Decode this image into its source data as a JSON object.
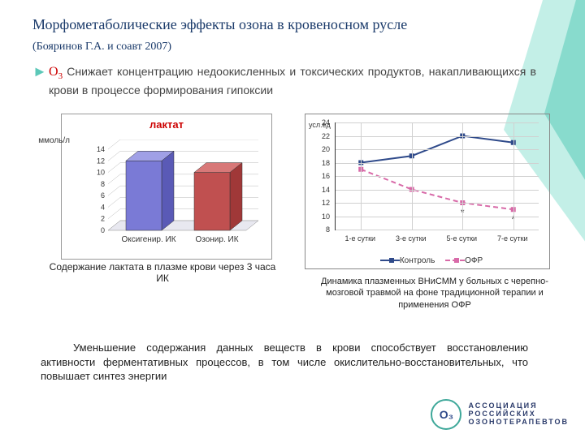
{
  "title_main": "Морфометаболические эффекты озона в кровеносном русле",
  "title_sub": "(Бояринов Г.А. и соавт 2007)",
  "lead_o3": "O",
  "lead_o3_sub": "3",
  "lead": " Снижает концентрацию недоокисленных и токсических продуктов, накапливающихся в крови в процессе формирования гипоксии",
  "bar_chart": {
    "title": "лактат",
    "ylabel": "ммоль/л",
    "categories": [
      "Оксигенир. ИК",
      "Озонир. ИК"
    ],
    "values": [
      12,
      10
    ],
    "ylim": [
      0,
      14
    ],
    "ytick_step": 2,
    "bar_colors_front": [
      "#7a7ad6",
      "#c05050"
    ],
    "bar_colors_top": [
      "#a0a0e6",
      "#d87878"
    ],
    "bar_colors_side": [
      "#5a5ab6",
      "#a03838"
    ],
    "background": "#ffffff",
    "grid_color": "#bbbbbb",
    "floor_color": "#e8e8f0"
  },
  "left_caption": "Содержание лактата в плазме крови через 3 часа ИК",
  "line_chart": {
    "ylabel": "усл.ед",
    "xcats": [
      "1-е сутки",
      "3-е сутки",
      "5-е сутки",
      "7-е сутки"
    ],
    "ylim": [
      8,
      24
    ],
    "y_ticks": [
      8,
      10,
      12,
      14,
      16,
      18,
      20,
      22,
      24
    ],
    "series": [
      {
        "name": "Контроль",
        "color": "#2f4a8a",
        "dashed": false,
        "values": [
          18,
          19,
          22,
          21
        ]
      },
      {
        "name": "ОФР",
        "color": "#d86aa8",
        "dashed": true,
        "values": [
          17,
          14,
          12,
          11
        ]
      }
    ],
    "annot": [
      "",
      "",
      "*",
      "*"
    ],
    "background": "#ffffff",
    "grid_color": "#d0d0d0"
  },
  "right_caption": "Динамика плазменных ВНиСММ у больных с черепно-мозговой травмой на фоне традиционной терапии и применения ОФР",
  "bottom_text": "Уменьшение содержания данных веществ в крови способствует восстановлению активности ферментативных процессов, в том числе окислительно-восстановительных, что повышает синтез энергии",
  "legend_ctrl": "Контроль",
  "legend_ofr": "ОФР",
  "logo_glyph": "O₃",
  "logo_line1": "АССОЦИАЦИЯ",
  "logo_line2": "РОССИЙСКИХ",
  "logo_line3": "ОЗОНОТЕРАПЕВТОВ",
  "colors": {
    "accent_teal": "#7cd8c8",
    "title_color": "#1a3a6a",
    "red": "#c00000"
  }
}
